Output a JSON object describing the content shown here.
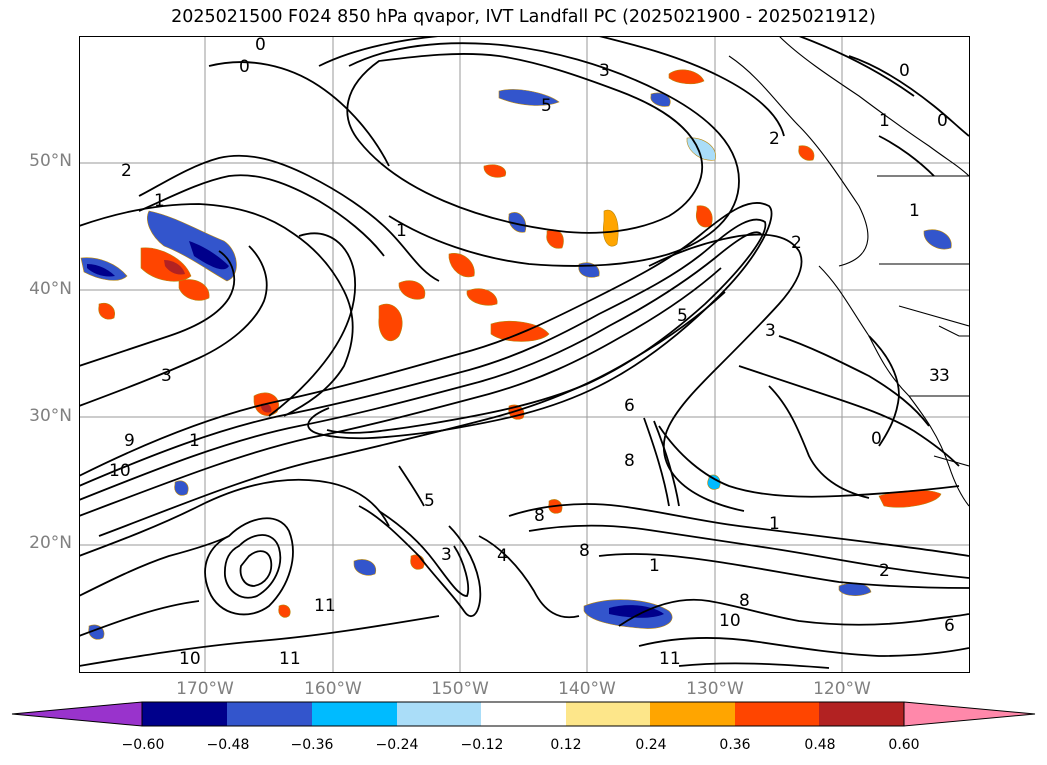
{
  "title": "2025021500 F024 850 hPa qvapor, IVT Landfall PC (2025021900 - 2025021912)",
  "latitude_labels": [
    "50°N",
    "40°N",
    "30°N",
    "20°N"
  ],
  "longitude_labels": [
    "170°W",
    "160°W",
    "150°W",
    "140°W",
    "130°W",
    "120°W"
  ],
  "map": {
    "grid": true,
    "coastlines": true,
    "contour_color": "#000000",
    "contour_labels": [
      "0",
      "0",
      "0",
      "0",
      "1",
      "1",
      "2",
      "3",
      "3",
      "5",
      "1",
      "1",
      "2",
      "3",
      "5",
      "6",
      "8",
      "9",
      "10",
      "11",
      "11",
      "11",
      "10",
      "8",
      "4",
      "3",
      "2",
      "1",
      "3",
      "0",
      "6",
      "1",
      "5",
      "10",
      "8",
      "8",
      "2",
      "1",
      "3"
    ]
  },
  "colorbar": {
    "ticks": [
      "−0.60",
      "−0.48",
      "−0.36",
      "−0.24",
      "−0.12",
      "0.12",
      "0.24",
      "0.36",
      "0.48",
      "0.60"
    ],
    "colors": {
      "under": "#9933cc",
      "bins": [
        "#9933cc",
        "#00008b",
        "#3355cc",
        "#00bbff",
        "#aaddf8",
        "#ffffff",
        "#fde68a",
        "#ffa500",
        "#ff4500",
        "#b22222",
        "#ff88aa"
      ],
      "over": "#ff88aa"
    }
  }
}
